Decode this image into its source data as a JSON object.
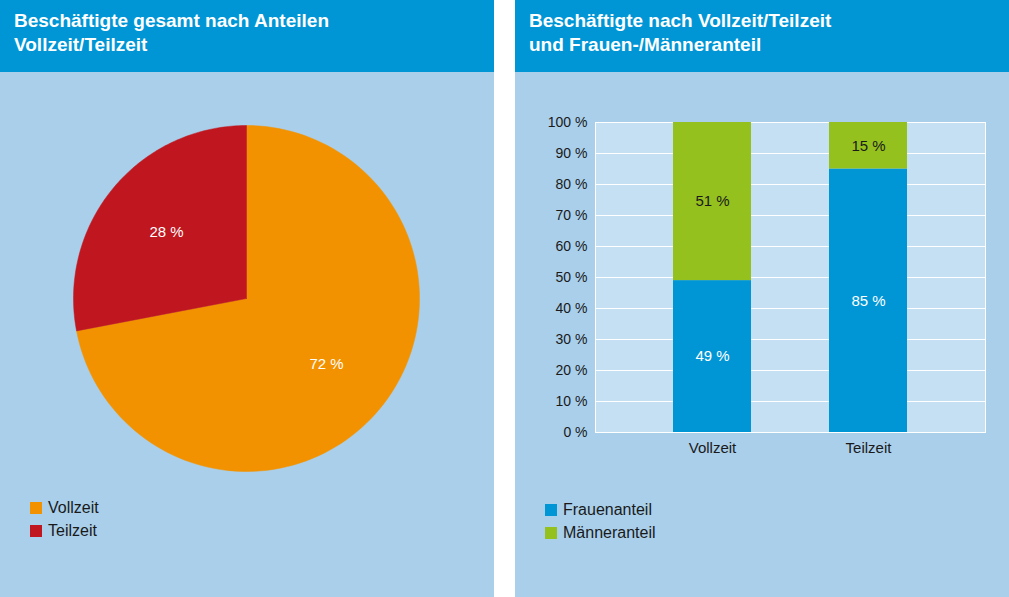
{
  "chart_data": [
    {
      "type": "pie",
      "title": "Beschäftigte gesamt nach Anteilen\nVollzeit/Teilzeit",
      "categories": [
        "Vollzeit",
        "Teilzeit"
      ],
      "values": [
        72,
        28
      ],
      "value_labels": [
        "72 %",
        "28 %"
      ],
      "colors": [
        "#f39200",
        "#c0161f"
      ],
      "data_labels": true,
      "legend": "bottom"
    },
    {
      "type": "bar",
      "title": "Beschäftigte nach Vollzeit/Teilzeit\nund Frauen-/Männeranteil",
      "categories": [
        "Vollzeit",
        "Teilzeit"
      ],
      "series": [
        {
          "name": "Frauenanteil",
          "color": "#0096d6",
          "values": [
            49,
            85
          ],
          "value_labels": [
            "49 %",
            "85 %"
          ]
        },
        {
          "name": "Männeranteil",
          "color": "#95c11f",
          "values": [
            51,
            15
          ],
          "value_labels": [
            "51 %",
            "15 %"
          ]
        }
      ],
      "ylim": [
        0,
        100
      ],
      "yticks": [
        {
          "value": 0,
          "label": "0 %"
        },
        {
          "value": 10,
          "label": "10 %"
        },
        {
          "value": 20,
          "label": "20 %"
        },
        {
          "value": 30,
          "label": "30 %"
        },
        {
          "value": 40,
          "label": "40 %"
        },
        {
          "value": 50,
          "label": "50 %"
        },
        {
          "value": 60,
          "label": "60 %"
        },
        {
          "value": 70,
          "label": "70 %"
        },
        {
          "value": 80,
          "label": "80 %"
        },
        {
          "value": 90,
          "label": "90 %"
        },
        {
          "value": 100,
          "label": "100 %"
        }
      ],
      "stacked": true,
      "data_labels": true,
      "grid": true,
      "legend": "bottom"
    }
  ]
}
